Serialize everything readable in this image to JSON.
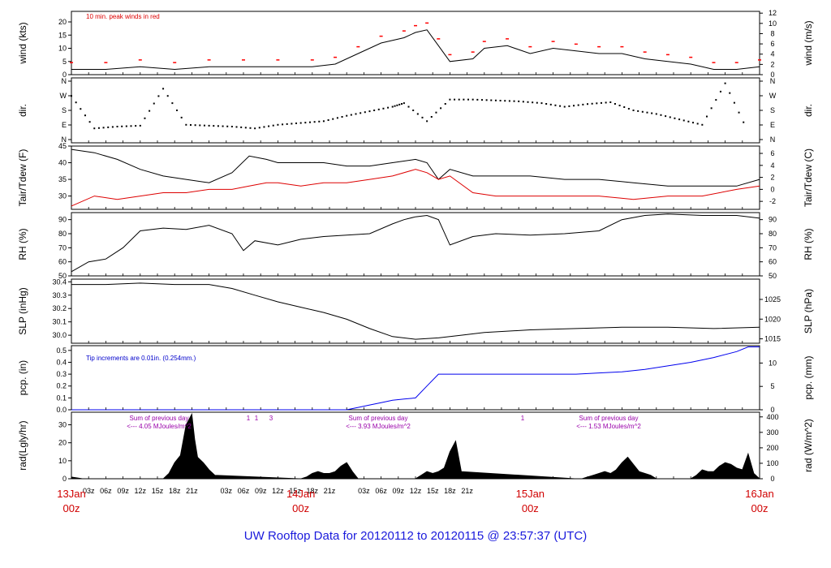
{
  "title": "UW Rooftop Data for 20120112  to  20120115 @ 23:57:37  (UTC)",
  "x_axis": {
    "hour_labels": [
      "03z",
      "06z",
      "09z",
      "12z",
      "15z",
      "18z",
      "21z",
      "03z",
      "06z",
      "09z",
      "12z",
      "15z",
      "18z",
      "21z",
      "03z",
      "06z",
      "09z",
      "12z",
      "15z",
      "18z",
      "21z"
    ],
    "day_labels": [
      {
        "date": "13Jan",
        "time": "00z"
      },
      {
        "date": "14Jan",
        "time": "00z"
      },
      {
        "date": "15Jan",
        "time": "00z"
      },
      {
        "date": "16Jan",
        "time": "00z"
      }
    ]
  },
  "chart_data": [
    {
      "type": "line",
      "name": "wind",
      "ylabel_left": "wind (kts)",
      "ylabel_right": "wind (m/s)",
      "yticks_left": [
        "0",
        "5",
        "10",
        "15",
        "20"
      ],
      "yticks_right": [
        "0",
        "2",
        "4",
        "6",
        "8",
        "10",
        "12"
      ],
      "ylim": [
        0,
        24
      ],
      "annotation": "10 min. peak winds in red",
      "colors": {
        "line": "#000000",
        "peaks": "#ff0000"
      },
      "series": [
        {
          "x_hours": [
            0,
            6,
            12,
            18,
            24,
            30,
            36,
            42,
            46,
            50,
            54,
            58,
            60,
            62,
            64,
            66,
            70,
            72,
            76,
            80,
            84,
            88,
            92,
            96,
            100,
            104,
            108,
            112,
            116,
            120
          ],
          "values": [
            2,
            2,
            3,
            2,
            3,
            3,
            3,
            3,
            4,
            8,
            12,
            14,
            16,
            17,
            11,
            5,
            6,
            10,
            11,
            8,
            10,
            9,
            8,
            8,
            6,
            5,
            4,
            2,
            2,
            3
          ]
        }
      ]
    },
    {
      "type": "scatter",
      "name": "dir",
      "ylabel_left": "dir.",
      "ylabel_right": "dir.",
      "yticks_left": [
        "N",
        "E",
        "S",
        "W",
        "N"
      ],
      "yticks_right": [
        "N",
        "E",
        "S",
        "W",
        "N"
      ],
      "ylim": [
        0,
        360
      ],
      "series": [
        {
          "x_hours": [
            0,
            4,
            8,
            12,
            16,
            20,
            24,
            28,
            32,
            36,
            40,
            44,
            48,
            52,
            56,
            58,
            62,
            66,
            70,
            74,
            78,
            82,
            86,
            90,
            94,
            98,
            102,
            106,
            110,
            114,
            118
          ],
          "values": [
            260,
            80,
            90,
            95,
            300,
            100,
            95,
            90,
            80,
            100,
            110,
            120,
            150,
            175,
            200,
            220,
            120,
            240,
            240,
            235,
            230,
            220,
            200,
            215,
            225,
            180,
            160,
            130,
            100,
            330,
            60
          ]
        }
      ]
    },
    {
      "type": "line",
      "name": "tair-tdew",
      "ylabel_left": "Tair/Tdew (F)",
      "ylabel_right": "Tair/Tdew (C)",
      "yticks_left": [
        "30",
        "35",
        "40",
        "45"
      ],
      "yticks_right": [
        "-2",
        "0",
        "2",
        "4",
        "6"
      ],
      "ylim": [
        26,
        45
      ],
      "series": [
        {
          "name": "Tair",
          "color": "#000000",
          "x_hours": [
            0,
            4,
            8,
            12,
            16,
            20,
            24,
            28,
            31,
            34,
            36,
            40,
            44,
            48,
            52,
            56,
            60,
            62,
            64,
            66,
            70,
            74,
            80,
            86,
            92,
            98,
            104,
            110,
            116,
            120
          ],
          "values": [
            44,
            43,
            41,
            38,
            36,
            35,
            34,
            37,
            42,
            41,
            40,
            40,
            40,
            39,
            39,
            40,
            41,
            40,
            35,
            38,
            36,
            36,
            36,
            35,
            35,
            34,
            33,
            33,
            33,
            35
          ]
        },
        {
          "name": "Tdew",
          "color": "#dd0000",
          "x_hours": [
            0,
            4,
            8,
            12,
            16,
            20,
            24,
            28,
            31,
            34,
            36,
            40,
            44,
            48,
            52,
            56,
            60,
            62,
            64,
            66,
            70,
            74,
            80,
            86,
            92,
            98,
            104,
            110,
            116,
            120
          ],
          "values": [
            27,
            30,
            29,
            30,
            31,
            31,
            32,
            32,
            33,
            34,
            34,
            33,
            34,
            34,
            35,
            36,
            38,
            37,
            35,
            36,
            31,
            30,
            30,
            30,
            30,
            29,
            30,
            30,
            32,
            33
          ]
        }
      ]
    },
    {
      "type": "line",
      "name": "rh",
      "ylabel_left": "RH (%)",
      "ylabel_right": "RH (%)",
      "yticks_left": [
        "50",
        "60",
        "70",
        "80",
        "90"
      ],
      "yticks_right": [
        "50",
        "60",
        "70",
        "80",
        "90"
      ],
      "ylim": [
        50,
        95
      ],
      "series": [
        {
          "x_hours": [
            0,
            3,
            6,
            9,
            12,
            16,
            20,
            24,
            28,
            30,
            32,
            36,
            40,
            44,
            48,
            52,
            56,
            58,
            60,
            62,
            64,
            66,
            70,
            74,
            80,
            86,
            92,
            96,
            100,
            104,
            110,
            116,
            120
          ],
          "values": [
            53,
            60,
            62,
            70,
            82,
            84,
            83,
            86,
            80,
            68,
            75,
            72,
            76,
            78,
            79,
            80,
            87,
            90,
            92,
            93,
            90,
            72,
            78,
            80,
            79,
            80,
            82,
            90,
            93,
            94,
            93,
            93,
            91
          ]
        }
      ]
    },
    {
      "type": "line",
      "name": "slp",
      "ylabel_left": "SLP (inHg)",
      "ylabel_right": "SLP (hPa)",
      "yticks_left": [
        "30.0",
        "30.1",
        "30.2",
        "30.3",
        "30.4"
      ],
      "yticks_right": [
        "1015",
        "1020",
        "1025"
      ],
      "ylim": [
        29.94,
        30.42
      ],
      "series": [
        {
          "x_hours": [
            0,
            6,
            12,
            18,
            24,
            28,
            32,
            36,
            40,
            44,
            48,
            52,
            56,
            60,
            64,
            68,
            72,
            80,
            88,
            96,
            104,
            112,
            120
          ],
          "values": [
            30.38,
            30.38,
            30.39,
            30.38,
            30.38,
            30.35,
            30.3,
            30.25,
            30.21,
            30.17,
            30.12,
            30.05,
            29.99,
            29.97,
            29.98,
            30.0,
            30.02,
            30.04,
            30.05,
            30.06,
            30.06,
            30.05,
            30.06
          ]
        }
      ]
    },
    {
      "type": "line",
      "name": "pcp",
      "ylabel_left": "pcp. (in)",
      "ylabel_right": "pcp. (mm)",
      "yticks_left": [
        "0.0",
        "0.1",
        "0.2",
        "0.3",
        "0.4",
        "0.5"
      ],
      "yticks_right": [
        "0",
        "5",
        "10"
      ],
      "ylim": [
        0,
        0.54
      ],
      "annotation": "Tip increments are 0.01in. (0.254mm.)",
      "colors": {
        "line": "#0000ee"
      },
      "series": [
        {
          "x_hours": [
            0,
            48,
            50,
            52,
            54,
            56,
            58,
            60,
            62,
            64,
            66,
            72,
            80,
            88,
            92,
            96,
            100,
            104,
            108,
            112,
            116,
            118,
            120
          ],
          "values": [
            0,
            0,
            0.02,
            0.04,
            0.06,
            0.08,
            0.09,
            0.1,
            0.2,
            0.3,
            0.3,
            0.3,
            0.3,
            0.3,
            0.31,
            0.32,
            0.34,
            0.37,
            0.4,
            0.44,
            0.49,
            0.53,
            0.53
          ]
        }
      ]
    },
    {
      "type": "area",
      "name": "rad",
      "ylabel_left": "rad(Lgly/hr)",
      "ylabel_right": "rad (W/m^2)",
      "yticks_left": [
        "0",
        "10",
        "20",
        "30"
      ],
      "yticks_right": [
        "0",
        "100",
        "200",
        "300",
        "400"
      ],
      "ylim": [
        0,
        37
      ],
      "annotations": [
        {
          "line1": "Sum of previous day",
          "line2": "<--- 4.05 MJoules/m^2"
        },
        {
          "line1": "Sum of previous day",
          "line2": "<--- 3.93 MJoules/m^2"
        },
        {
          "line1": "Sum of previous day",
          "line2": "<--- 1.53 MJoules/m^2"
        }
      ],
      "marks": [
        "1",
        "1",
        "3",
        "1"
      ],
      "series": [
        {
          "x_hours": [
            0,
            1,
            2,
            16,
            17,
            18,
            19,
            20,
            21,
            21.5,
            22,
            23,
            24,
            25,
            40,
            41,
            42,
            43,
            44,
            45,
            46,
            47,
            48,
            49,
            50,
            60,
            61,
            62,
            63,
            64,
            65,
            66,
            67,
            68,
            88,
            89,
            90,
            91,
            92,
            93,
            94,
            95,
            96,
            97,
            98,
            99,
            100,
            101,
            102,
            108,
            109,
            110,
            111,
            112,
            113,
            114,
            115,
            116,
            117,
            118,
            119,
            120
          ],
          "values": [
            1,
            0.5,
            0,
            0,
            3,
            9,
            13,
            30,
            36,
            22,
            12,
            9,
            5,
            2,
            0,
            1,
            3,
            4,
            3,
            3,
            4,
            7,
            9,
            4,
            0,
            0,
            2,
            4,
            3,
            4,
            6,
            15,
            21,
            4,
            0,
            0,
            1,
            2,
            3,
            4,
            3,
            5,
            9,
            12,
            8,
            4,
            3,
            2,
            0,
            0,
            2,
            5,
            4,
            4,
            7,
            9,
            8,
            6,
            5,
            14,
            3,
            0
          ]
        }
      ]
    }
  ]
}
